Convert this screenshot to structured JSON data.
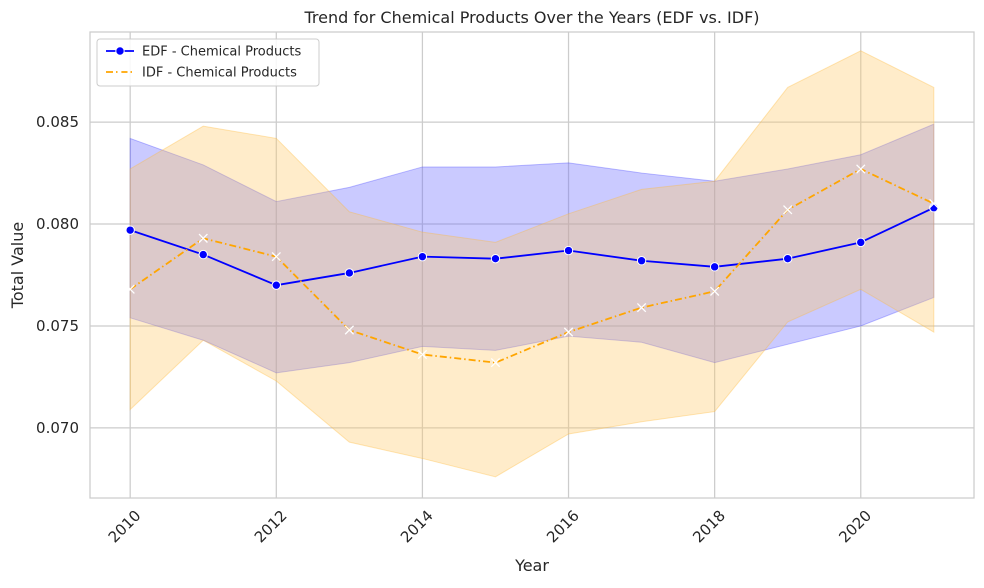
{
  "chart_data": {
    "type": "line",
    "title": "Trend for Chemical Products Over the Years (EDF vs. IDF)",
    "xlabel": "Year",
    "ylabel": "Total Value",
    "x": [
      2010,
      2011,
      2012,
      2013,
      2014,
      2015,
      2016,
      2017,
      2018,
      2019,
      2020,
      2021
    ],
    "xlim": [
      2009.45,
      2021.55
    ],
    "ylim": [
      0.06656,
      0.08942
    ],
    "x_ticks": [
      2010,
      2012,
      2014,
      2016,
      2018,
      2020
    ],
    "x_tick_labels": [
      "2010",
      "2012",
      "2014",
      "2016",
      "2018",
      "2020"
    ],
    "y_ticks": [
      0.07,
      0.075,
      0.08,
      0.085
    ],
    "y_tick_labels": [
      "0.070",
      "0.075",
      "0.080",
      "0.085"
    ],
    "grid": true,
    "legend_position": "top-left",
    "series": [
      {
        "name": "EDF - Chemical Products",
        "color": "#0000ff",
        "line_style": "solid",
        "marker": "circle",
        "values": [
          0.0797,
          0.0785,
          0.077,
          0.0776,
          0.0784,
          0.0783,
          0.0787,
          0.0782,
          0.0779,
          0.0783,
          0.0791,
          0.0808
        ],
        "ci_lower": [
          0.0754,
          0.0743,
          0.0727,
          0.0732,
          0.074,
          0.0738,
          0.0745,
          0.0742,
          0.0732,
          0.0741,
          0.075,
          0.0764
        ],
        "ci_upper": [
          0.0842,
          0.0829,
          0.0811,
          0.0818,
          0.0828,
          0.0828,
          0.083,
          0.0825,
          0.0821,
          0.0827,
          0.0834,
          0.0849
        ]
      },
      {
        "name": "IDF - Chemical Products",
        "color": "#ffa500",
        "line_style": "dashdot",
        "marker": "x",
        "values": [
          0.0768,
          0.0793,
          0.0784,
          0.0748,
          0.0736,
          0.0732,
          0.0747,
          0.0759,
          0.0767,
          0.0807,
          0.0827,
          0.081
        ],
        "ci_lower": [
          0.0709,
          0.0743,
          0.0723,
          0.0693,
          0.0685,
          0.0676,
          0.0697,
          0.0703,
          0.0708,
          0.0752,
          0.0768,
          0.0747
        ],
        "ci_upper": [
          0.0827,
          0.0848,
          0.0842,
          0.0806,
          0.0796,
          0.0791,
          0.0805,
          0.0817,
          0.0821,
          0.0867,
          0.0885,
          0.0867
        ]
      }
    ]
  }
}
